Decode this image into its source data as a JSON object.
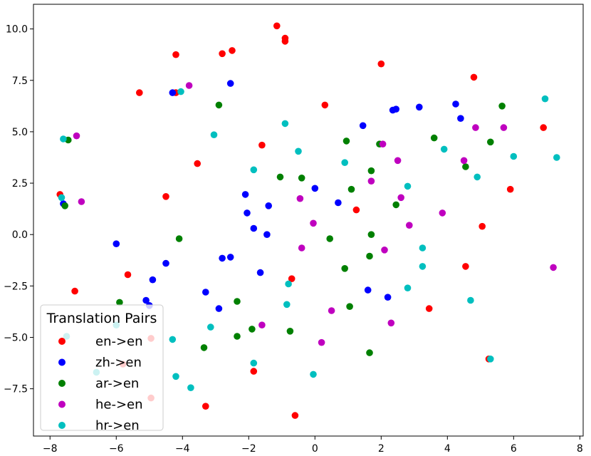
{
  "chart_data": {
    "type": "scatter",
    "title": "",
    "xlabel": "",
    "ylabel": "",
    "xlim": [
      -8.5,
      8.1
    ],
    "ylim": [
      -9.8,
      11.2
    ],
    "x_ticks": [
      -8,
      -6,
      -4,
      -2,
      0,
      2,
      4,
      6,
      8
    ],
    "y_ticks": [
      -7.5,
      -5.0,
      -2.5,
      0.0,
      2.5,
      5.0,
      7.5,
      10.0
    ],
    "x_tick_labels": [
      "−8",
      "−6",
      "−4",
      "−2",
      "0",
      "2",
      "4",
      "6",
      "8"
    ],
    "y_tick_labels": [
      "−7.5",
      "−5.0",
      "−2.5",
      "0.0",
      "2.5",
      "5.0",
      "7.5",
      "10.0"
    ],
    "grid": false,
    "legend": {
      "title": "Translation Pairs",
      "position": "lower-left"
    },
    "series": [
      {
        "name": "en->en",
        "color": "#ff0000",
        "points": [
          [
            -1.15,
            10.15
          ],
          [
            -0.9,
            9.55
          ],
          [
            -0.9,
            9.4
          ],
          [
            -2.5,
            8.95
          ],
          [
            -2.8,
            8.8
          ],
          [
            -4.2,
            8.75
          ],
          [
            2.0,
            8.3
          ],
          [
            -5.3,
            6.9
          ],
          [
            -4.2,
            6.9
          ],
          [
            4.8,
            7.65
          ],
          [
            0.3,
            6.3
          ],
          [
            6.9,
            5.2
          ],
          [
            -1.6,
            4.35
          ],
          [
            -3.55,
            3.45
          ],
          [
            -7.7,
            1.95
          ],
          [
            -4.5,
            1.85
          ],
          [
            5.9,
            2.2
          ],
          [
            1.25,
            1.2
          ],
          [
            5.05,
            0.4
          ],
          [
            -5.65,
            -1.95
          ],
          [
            -0.7,
            -2.15
          ],
          [
            4.55,
            -1.55
          ],
          [
            -7.25,
            -2.75
          ],
          [
            3.45,
            -3.6
          ],
          [
            -4.95,
            -5.05
          ],
          [
            -5.8,
            -6.3
          ],
          [
            -1.85,
            -6.65
          ],
          [
            5.25,
            -6.05
          ],
          [
            -4.95,
            -7.95
          ],
          [
            -3.3,
            -8.35
          ],
          [
            -0.6,
            -8.8
          ]
        ]
      },
      {
        "name": "zh->en",
        "color": "#0000ff",
        "points": [
          [
            -2.55,
            7.35
          ],
          [
            -4.3,
            6.9
          ],
          [
            4.25,
            6.35
          ],
          [
            3.15,
            6.2
          ],
          [
            2.45,
            6.1
          ],
          [
            2.35,
            6.05
          ],
          [
            4.4,
            5.65
          ],
          [
            1.45,
            5.3
          ],
          [
            -2.1,
            1.95
          ],
          [
            0.0,
            2.25
          ],
          [
            0.7,
            1.55
          ],
          [
            -1.4,
            1.4
          ],
          [
            -2.05,
            1.05
          ],
          [
            -1.85,
            0.3
          ],
          [
            -1.45,
            0.0
          ],
          [
            -6.0,
            -0.45
          ],
          [
            -2.55,
            -1.1
          ],
          [
            -2.8,
            -1.15
          ],
          [
            -4.5,
            -1.4
          ],
          [
            -1.65,
            -1.85
          ],
          [
            -4.9,
            -2.2
          ],
          [
            -3.3,
            -2.8
          ],
          [
            1.6,
            -2.7
          ],
          [
            2.2,
            -3.05
          ],
          [
            -5.1,
            -3.2
          ],
          [
            -5.0,
            -3.45
          ],
          [
            -2.9,
            -3.6
          ],
          [
            -7.6,
            1.5
          ]
        ]
      },
      {
        "name": "ar->en",
        "color": "#008000",
        "points": [
          [
            -2.9,
            6.3
          ],
          [
            5.65,
            6.25
          ],
          [
            3.6,
            4.7
          ],
          [
            0.95,
            4.55
          ],
          [
            5.3,
            4.5
          ],
          [
            1.95,
            4.4
          ],
          [
            4.55,
            3.3
          ],
          [
            1.7,
            3.1
          ],
          [
            -1.05,
            2.8
          ],
          [
            -0.4,
            2.75
          ],
          [
            1.1,
            2.2
          ],
          [
            2.45,
            1.45
          ],
          [
            -7.45,
            4.6
          ],
          [
            -7.55,
            1.4
          ],
          [
            -4.1,
            -0.2
          ],
          [
            0.45,
            -0.2
          ],
          [
            1.7,
            0.0
          ],
          [
            1.65,
            -1.05
          ],
          [
            0.9,
            -1.65
          ],
          [
            -5.9,
            -3.3
          ],
          [
            -2.35,
            -3.25
          ],
          [
            1.05,
            -3.5
          ],
          [
            -1.9,
            -4.6
          ],
          [
            -0.75,
            -4.7
          ],
          [
            -2.35,
            -4.95
          ],
          [
            -3.35,
            -5.5
          ],
          [
            1.65,
            -5.75
          ]
        ]
      },
      {
        "name": "he->en",
        "color": "#bf00bf",
        "points": [
          [
            -3.8,
            7.25
          ],
          [
            -7.2,
            4.8
          ],
          [
            4.85,
            5.2
          ],
          [
            5.7,
            5.2
          ],
          [
            2.05,
            4.4
          ],
          [
            4.5,
            3.6
          ],
          [
            2.5,
            3.6
          ],
          [
            1.7,
            2.6
          ],
          [
            -0.45,
            1.75
          ],
          [
            2.6,
            1.8
          ],
          [
            -7.05,
            1.6
          ],
          [
            3.85,
            1.05
          ],
          [
            -0.05,
            0.55
          ],
          [
            2.85,
            0.45
          ],
          [
            -0.4,
            -0.65
          ],
          [
            2.1,
            -0.75
          ],
          [
            7.2,
            -1.6
          ],
          [
            0.5,
            -3.7
          ],
          [
            -1.6,
            -4.4
          ],
          [
            2.3,
            -4.3
          ],
          [
            0.2,
            -5.25
          ]
        ]
      },
      {
        "name": "hr->en",
        "color": "#00bfbf",
        "points": [
          [
            -4.05,
            6.95
          ],
          [
            6.95,
            6.6
          ],
          [
            -3.05,
            4.85
          ],
          [
            -0.9,
            5.4
          ],
          [
            3.9,
            4.15
          ],
          [
            -0.5,
            4.05
          ],
          [
            0.9,
            3.5
          ],
          [
            6.0,
            3.8
          ],
          [
            7.3,
            3.75
          ],
          [
            -1.85,
            3.15
          ],
          [
            4.9,
            2.8
          ],
          [
            2.8,
            2.35
          ],
          [
            -7.65,
            1.8
          ],
          [
            3.25,
            -0.65
          ],
          [
            3.25,
            -1.55
          ],
          [
            -0.8,
            -2.4
          ],
          [
            2.8,
            -2.6
          ],
          [
            -0.85,
            -3.4
          ],
          [
            4.7,
            -3.2
          ],
          [
            -6.0,
            -4.4
          ],
          [
            -3.15,
            -4.5
          ],
          [
            -7.5,
            -4.95
          ],
          [
            -4.3,
            -5.1
          ],
          [
            -1.85,
            -6.25
          ],
          [
            -6.6,
            -6.7
          ],
          [
            -4.2,
            -6.9
          ],
          [
            -0.05,
            -6.8
          ],
          [
            5.3,
            -6.05
          ],
          [
            -3.75,
            -7.45
          ],
          [
            -7.6,
            4.65
          ]
        ]
      }
    ]
  }
}
